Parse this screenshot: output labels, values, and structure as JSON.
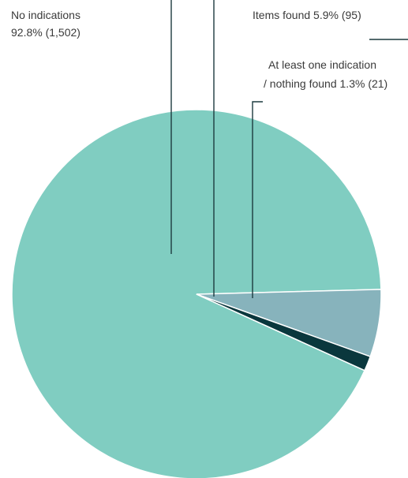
{
  "chart_data": {
    "type": "pie",
    "title": "",
    "slices": [
      {
        "name": "No indications",
        "value": 92.8,
        "count": 1502,
        "color": "#80cdc1",
        "label_lines": [
          "No indications",
          "92.8% (1,502)"
        ]
      },
      {
        "name": "Items found",
        "value": 5.9,
        "count": 95,
        "color": "#87b3bc",
        "label_lines": [
          "Items found 5.9% (95)"
        ]
      },
      {
        "name": "At least one indication / nothing found",
        "value": 1.3,
        "count": 21,
        "color": "#0a373d",
        "label_lines": [
          "At least one indication",
          "/ nothing found 1.3% (21)"
        ]
      }
    ],
    "legend": "none"
  }
}
